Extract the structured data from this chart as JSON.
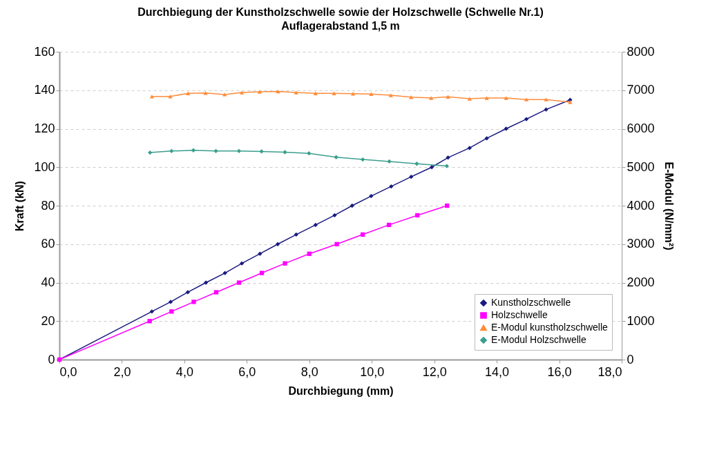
{
  "chart_data": {
    "type": "line",
    "title": "Durchbiegung der Kunstholzschwelle sowie der Holzschwelle (Schwelle Nr.1)",
    "subtitle": "Auflagerabstand 1,5 m",
    "xlabel": "Durchbiegung (mm)",
    "ylabel": "Kraft (kN)",
    "y2label": "E-Modul (N/mm²)",
    "xlim": [
      0,
      18
    ],
    "xticks": [
      {
        "value": 0,
        "label": "0,0"
      },
      {
        "value": 2,
        "label": "2,0"
      },
      {
        "value": 4,
        "label": "4,0"
      },
      {
        "value": 6,
        "label": "6,0"
      },
      {
        "value": 8,
        "label": "8,0"
      },
      {
        "value": 10,
        "label": "10,0"
      },
      {
        "value": 12,
        "label": "12,0"
      },
      {
        "value": 14,
        "label": "14,0"
      },
      {
        "value": 16,
        "label": "16,0"
      },
      {
        "value": 18,
        "label": "18,0"
      }
    ],
    "ylim": [
      0,
      160
    ],
    "yticks": [
      0,
      20,
      40,
      60,
      80,
      100,
      120,
      140,
      160
    ],
    "y2lim": [
      0,
      8000
    ],
    "y2ticks": [
      0,
      1000,
      2000,
      3000,
      4000,
      5000,
      6000,
      7000,
      8000
    ],
    "grid": "y",
    "legend": "bottom right",
    "series": [
      {
        "name": "Kunstholzschwelle",
        "color": "#1a1a80",
        "marker": "diamond",
        "x": [
          0,
          2.96,
          3.56,
          4.11,
          4.69,
          5.3,
          5.84,
          6.42,
          6.99,
          7.58,
          8.2,
          8.81,
          9.37,
          9.98,
          10.62,
          11.26,
          11.92,
          12.44,
          13.13,
          13.68,
          14.3,
          14.95,
          15.58,
          16.35
        ],
        "values": [
          0,
          25,
          30,
          35,
          40,
          45,
          50,
          55,
          60,
          65,
          70,
          75,
          80,
          85,
          90,
          95,
          100,
          105,
          110,
          115,
          120,
          125,
          130,
          135
        ]
      },
      {
        "name": "Holzschwelle",
        "color": "#ff00ff",
        "marker": "square",
        "x": [
          0,
          2.89,
          3.59,
          4.3,
          5.02,
          5.75,
          6.48,
          7.22,
          8.0,
          8.88,
          9.71,
          10.55,
          11.46,
          12.41
        ],
        "values": [
          0,
          20,
          25,
          30,
          35,
          40,
          45,
          50,
          55,
          60,
          65,
          70,
          75,
          80
        ]
      },
      {
        "name": "E-Modul kunstholzschwelle",
        "color": "#ff8c3a",
        "marker": "triangle",
        "axis": "y2",
        "x": [
          2.96,
          3.55,
          4.12,
          4.68,
          5.29,
          5.84,
          6.41,
          7.0,
          7.58,
          8.2,
          8.79,
          9.4,
          9.98,
          10.61,
          11.26,
          11.9,
          12.44,
          13.13,
          13.68,
          14.3,
          14.95,
          15.58,
          16.35
        ],
        "values": [
          6840,
          6840,
          6920,
          6930,
          6890,
          6940,
          6960,
          6970,
          6940,
          6920,
          6920,
          6910,
          6900,
          6870,
          6820,
          6800,
          6830,
          6780,
          6800,
          6800,
          6760,
          6760,
          6690
        ]
      },
      {
        "name": "E-Modul Holzschwelle",
        "color": "#3a9e8e",
        "marker": "diamond",
        "axis": "y2",
        "x": [
          2.9,
          3.59,
          4.29,
          5.01,
          5.75,
          6.47,
          7.22,
          7.99,
          8.86,
          9.71,
          10.56,
          11.44,
          12.4
        ],
        "values": [
          5380,
          5420,
          5440,
          5420,
          5420,
          5410,
          5390,
          5360,
          5260,
          5200,
          5150,
          5090,
          5030
        ]
      }
    ]
  }
}
